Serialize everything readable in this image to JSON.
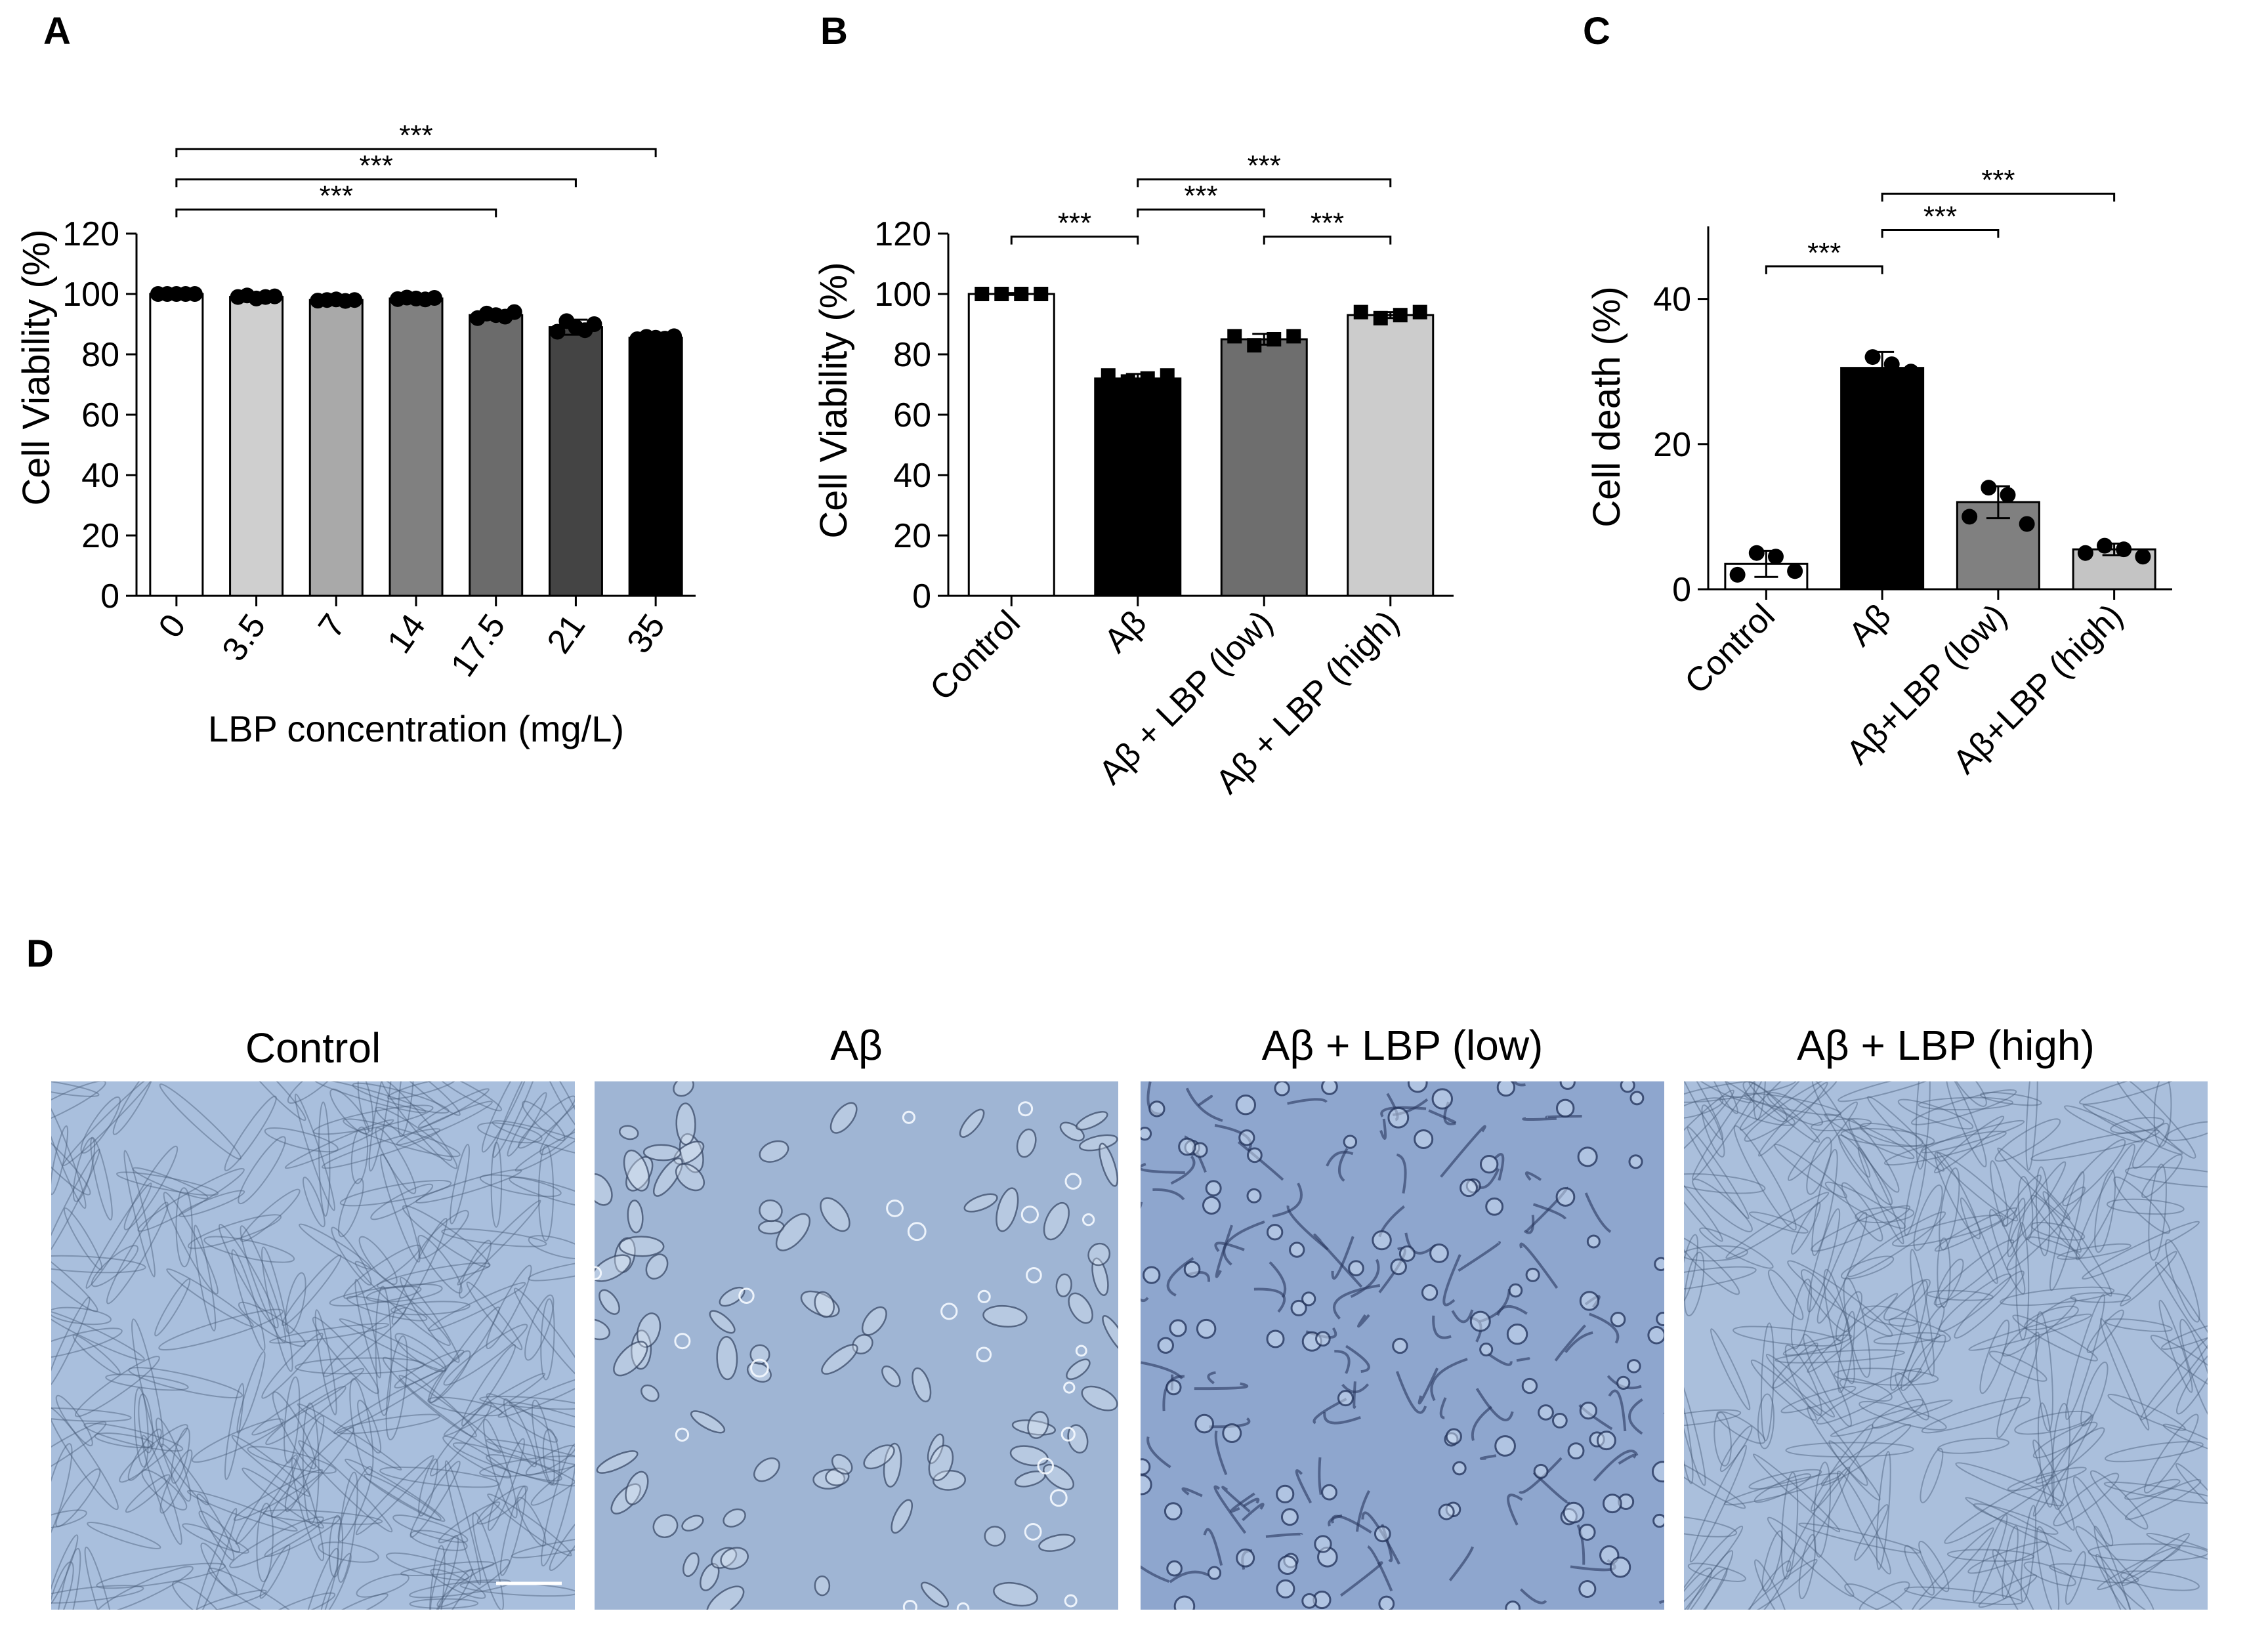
{
  "chart_data": [
    {
      "panel": "A",
      "type": "bar",
      "xlabel": "LBP concentration (mg/L)",
      "ylabel": "Cell Viability (%)",
      "categories": [
        "0",
        "3.5",
        "7",
        "14",
        "17.5",
        "21",
        "35"
      ],
      "values": [
        100,
        99,
        98,
        98.5,
        93,
        89,
        85.5
      ],
      "errors": [
        0.8,
        0.7,
        0.6,
        0.8,
        1.2,
        2.5,
        0.6
      ],
      "points": [
        [
          100,
          100,
          100,
          100,
          100
        ],
        [
          99,
          99.5,
          98.5,
          99,
          99.2
        ],
        [
          97.8,
          98,
          98.2,
          97.7,
          98
        ],
        [
          98.3,
          98.8,
          98.5,
          98.2,
          98.7
        ],
        [
          92,
          93.5,
          93,
          92.5,
          94
        ],
        [
          87.5,
          91,
          89,
          88,
          90
        ],
        [
          85,
          85.8,
          85.5,
          85.2,
          86
        ]
      ],
      "bar_colors": [
        "#ffffff",
        "#cfcfcf",
        "#a9a9a9",
        "#808080",
        "#6b6b6b",
        "#444444",
        "#000000"
      ],
      "ylim": [
        0,
        120
      ],
      "yticks": [
        0,
        20,
        40,
        60,
        80,
        100,
        120
      ],
      "significance": [
        {
          "from": 0,
          "to": 4,
          "label": "***",
          "value": 128
        },
        {
          "from": 0,
          "to": 5,
          "label": "***",
          "value": 138
        },
        {
          "from": 0,
          "to": 6,
          "label": "***",
          "value": 148
        }
      ]
    },
    {
      "panel": "B",
      "type": "bar",
      "xlabel": "",
      "ylabel": "Cell Viability (%)",
      "categories": [
        "Control",
        "Aβ",
        "Aβ + LBP (low)",
        "Aβ + LBP (high)"
      ],
      "values": [
        100,
        72,
        85,
        93
      ],
      "errors": [
        0.3,
        1.5,
        1.8,
        1.0
      ],
      "points": [
        [
          100,
          100,
          100,
          100
        ],
        [
          73,
          71,
          72,
          73
        ],
        [
          86,
          83,
          85,
          86
        ],
        [
          94,
          92,
          93,
          94
        ]
      ],
      "bar_colors": [
        "#ffffff",
        "#000000",
        "#6e6e6e",
        "#cccccc"
      ],
      "ylim": [
        0,
        120
      ],
      "yticks": [
        0,
        20,
        40,
        60,
        80,
        100,
        120
      ],
      "significance": [
        {
          "from": 0,
          "to": 1,
          "label": "***",
          "value": 119
        },
        {
          "from": 1,
          "to": 2,
          "label": "***",
          "value": 128
        },
        {
          "from": 2,
          "to": 3,
          "label": "***",
          "value": 119
        },
        {
          "from": 1,
          "to": 3,
          "label": "***",
          "value": 138
        }
      ]
    },
    {
      "panel": "C",
      "type": "bar",
      "xlabel": "",
      "ylabel": "Cell death (%)",
      "categories": [
        "Control",
        "Aβ",
        "Aβ+LBP (low)",
        "Aβ+LBP (high)"
      ],
      "values": [
        3.5,
        30.5,
        12,
        5.5
      ],
      "errors": [
        1.8,
        2.2,
        2.2,
        0.8
      ],
      "points": [
        [
          2,
          5,
          4.5,
          2.5
        ],
        [
          29,
          32,
          31,
          30
        ],
        [
          10,
          14,
          13,
          9
        ],
        [
          5,
          6,
          5.5,
          4.5
        ]
      ],
      "bar_colors": [
        "#ffffff",
        "#000000",
        "#808080",
        "#c4c4c4"
      ],
      "ylim": [
        0,
        50
      ],
      "yticks": [
        0,
        20,
        40
      ],
      "significance": [
        {
          "from": 0,
          "to": 1,
          "label": "***",
          "value": 44.5
        },
        {
          "from": 1,
          "to": 2,
          "label": "***",
          "value": 49.5
        },
        {
          "from": 1,
          "to": 3,
          "label": "***",
          "value": 54.5
        }
      ]
    }
  ],
  "panel_labels": {
    "a": "A",
    "b": "B",
    "c": "C",
    "d": "D"
  },
  "micrographs": [
    {
      "title": "Control",
      "tint": "#a9bfdd",
      "cell_style": "confluent",
      "scale_bar": true
    },
    {
      "title": "Aβ",
      "tint": "#9fb5d4",
      "cell_style": "sparse",
      "scale_bar": false
    },
    {
      "title": "Aβ + LBP (low)",
      "tint": "#8ea6ce",
      "cell_style": "networked",
      "scale_bar": false
    },
    {
      "title": "Aβ + LBP (high)",
      "tint": "#aabfdc",
      "cell_style": "confluent",
      "scale_bar": false
    }
  ]
}
